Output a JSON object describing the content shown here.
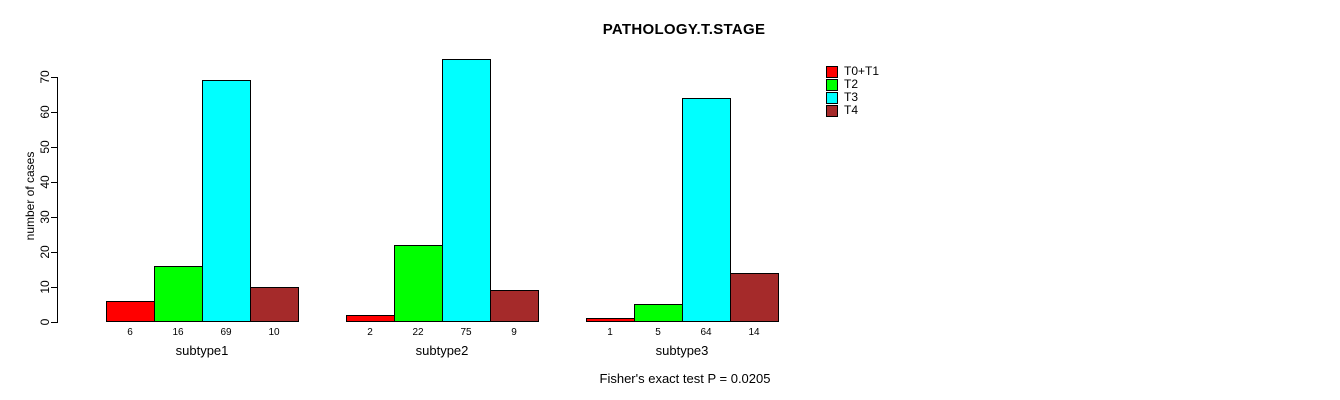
{
  "chart_data": {
    "type": "bar",
    "title": "PATHOLOGY.T.STAGE",
    "ylabel": "number of cases",
    "xlabel": "",
    "footer": "Fisher's exact test P = 0.0205",
    "categories": [
      "subtype1",
      "subtype2",
      "subtype3"
    ],
    "series": [
      {
        "name": "T0+T1",
        "color": "#FF0000",
        "values": [
          6,
          2,
          1
        ]
      },
      {
        "name": "T2",
        "color": "#00FF00",
        "values": [
          16,
          22,
          5
        ]
      },
      {
        "name": "T3",
        "color": "#00FFFF",
        "values": [
          69,
          75,
          64
        ]
      },
      {
        "name": "T4",
        "color": "#A52A2A",
        "values": [
          10,
          9,
          14
        ]
      }
    ],
    "value_labels_shown": true,
    "y_ticks": [
      0,
      10,
      20,
      30,
      40,
      50,
      60,
      70
    ],
    "ylim": [
      0,
      70
    ],
    "grid": false,
    "legend_position": "top-right",
    "bar_border_color": "#000000",
    "background_color": "#FFFFFF"
  }
}
